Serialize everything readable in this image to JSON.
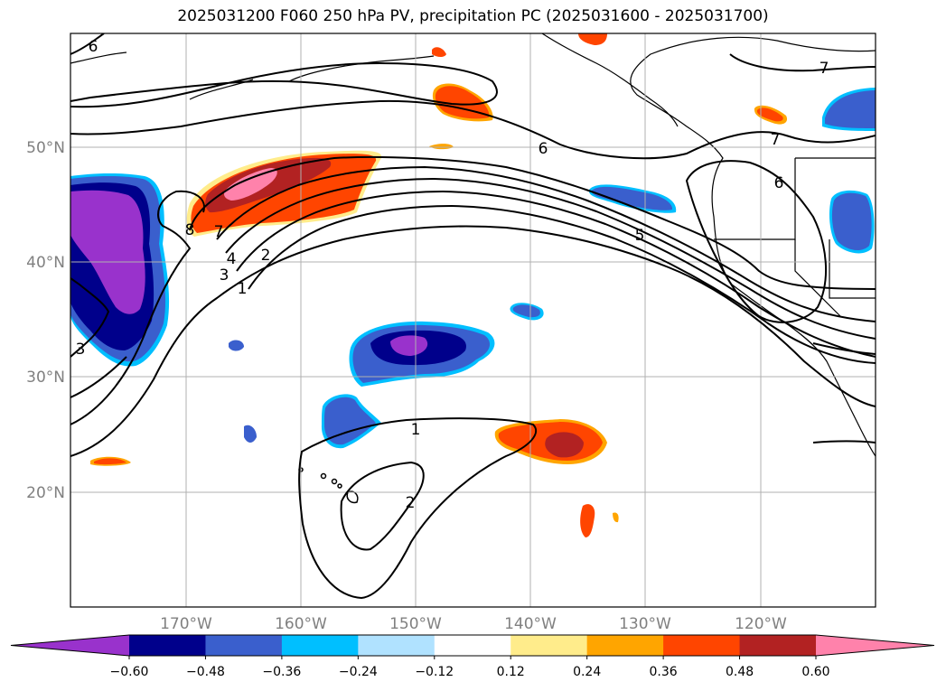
{
  "title": "2025031200 F060 250 hPa PV, precipitation PC (2025031600 - 2025031700)",
  "lat_labels": [
    "50°N",
    "40°N",
    "30°N",
    "20°N"
  ],
  "lon_labels": [
    "170°W",
    "160°W",
    "150°W",
    "140°W",
    "130°W",
    "120°W"
  ],
  "colorbar": {
    "ticks": [
      "−0.60",
      "−0.48",
      "−0.36",
      "−0.24",
      "−0.12",
      "0.12",
      "0.24",
      "0.36",
      "0.48",
      "0.60"
    ],
    "colors": [
      "#9932cc",
      "#00008b",
      "#3a5fcd",
      "#00bfff",
      "#b0e2ff",
      "#ffffff",
      "#ffec8b",
      "#ffa500",
      "#ff4500",
      "#b22222",
      "#ff82ab"
    ]
  },
  "contour_labels": [
    "6",
    "7",
    "6",
    "7",
    "6",
    "5",
    "4",
    "3",
    "2",
    "1",
    "8",
    "7",
    "3",
    "1",
    "2"
  ]
}
